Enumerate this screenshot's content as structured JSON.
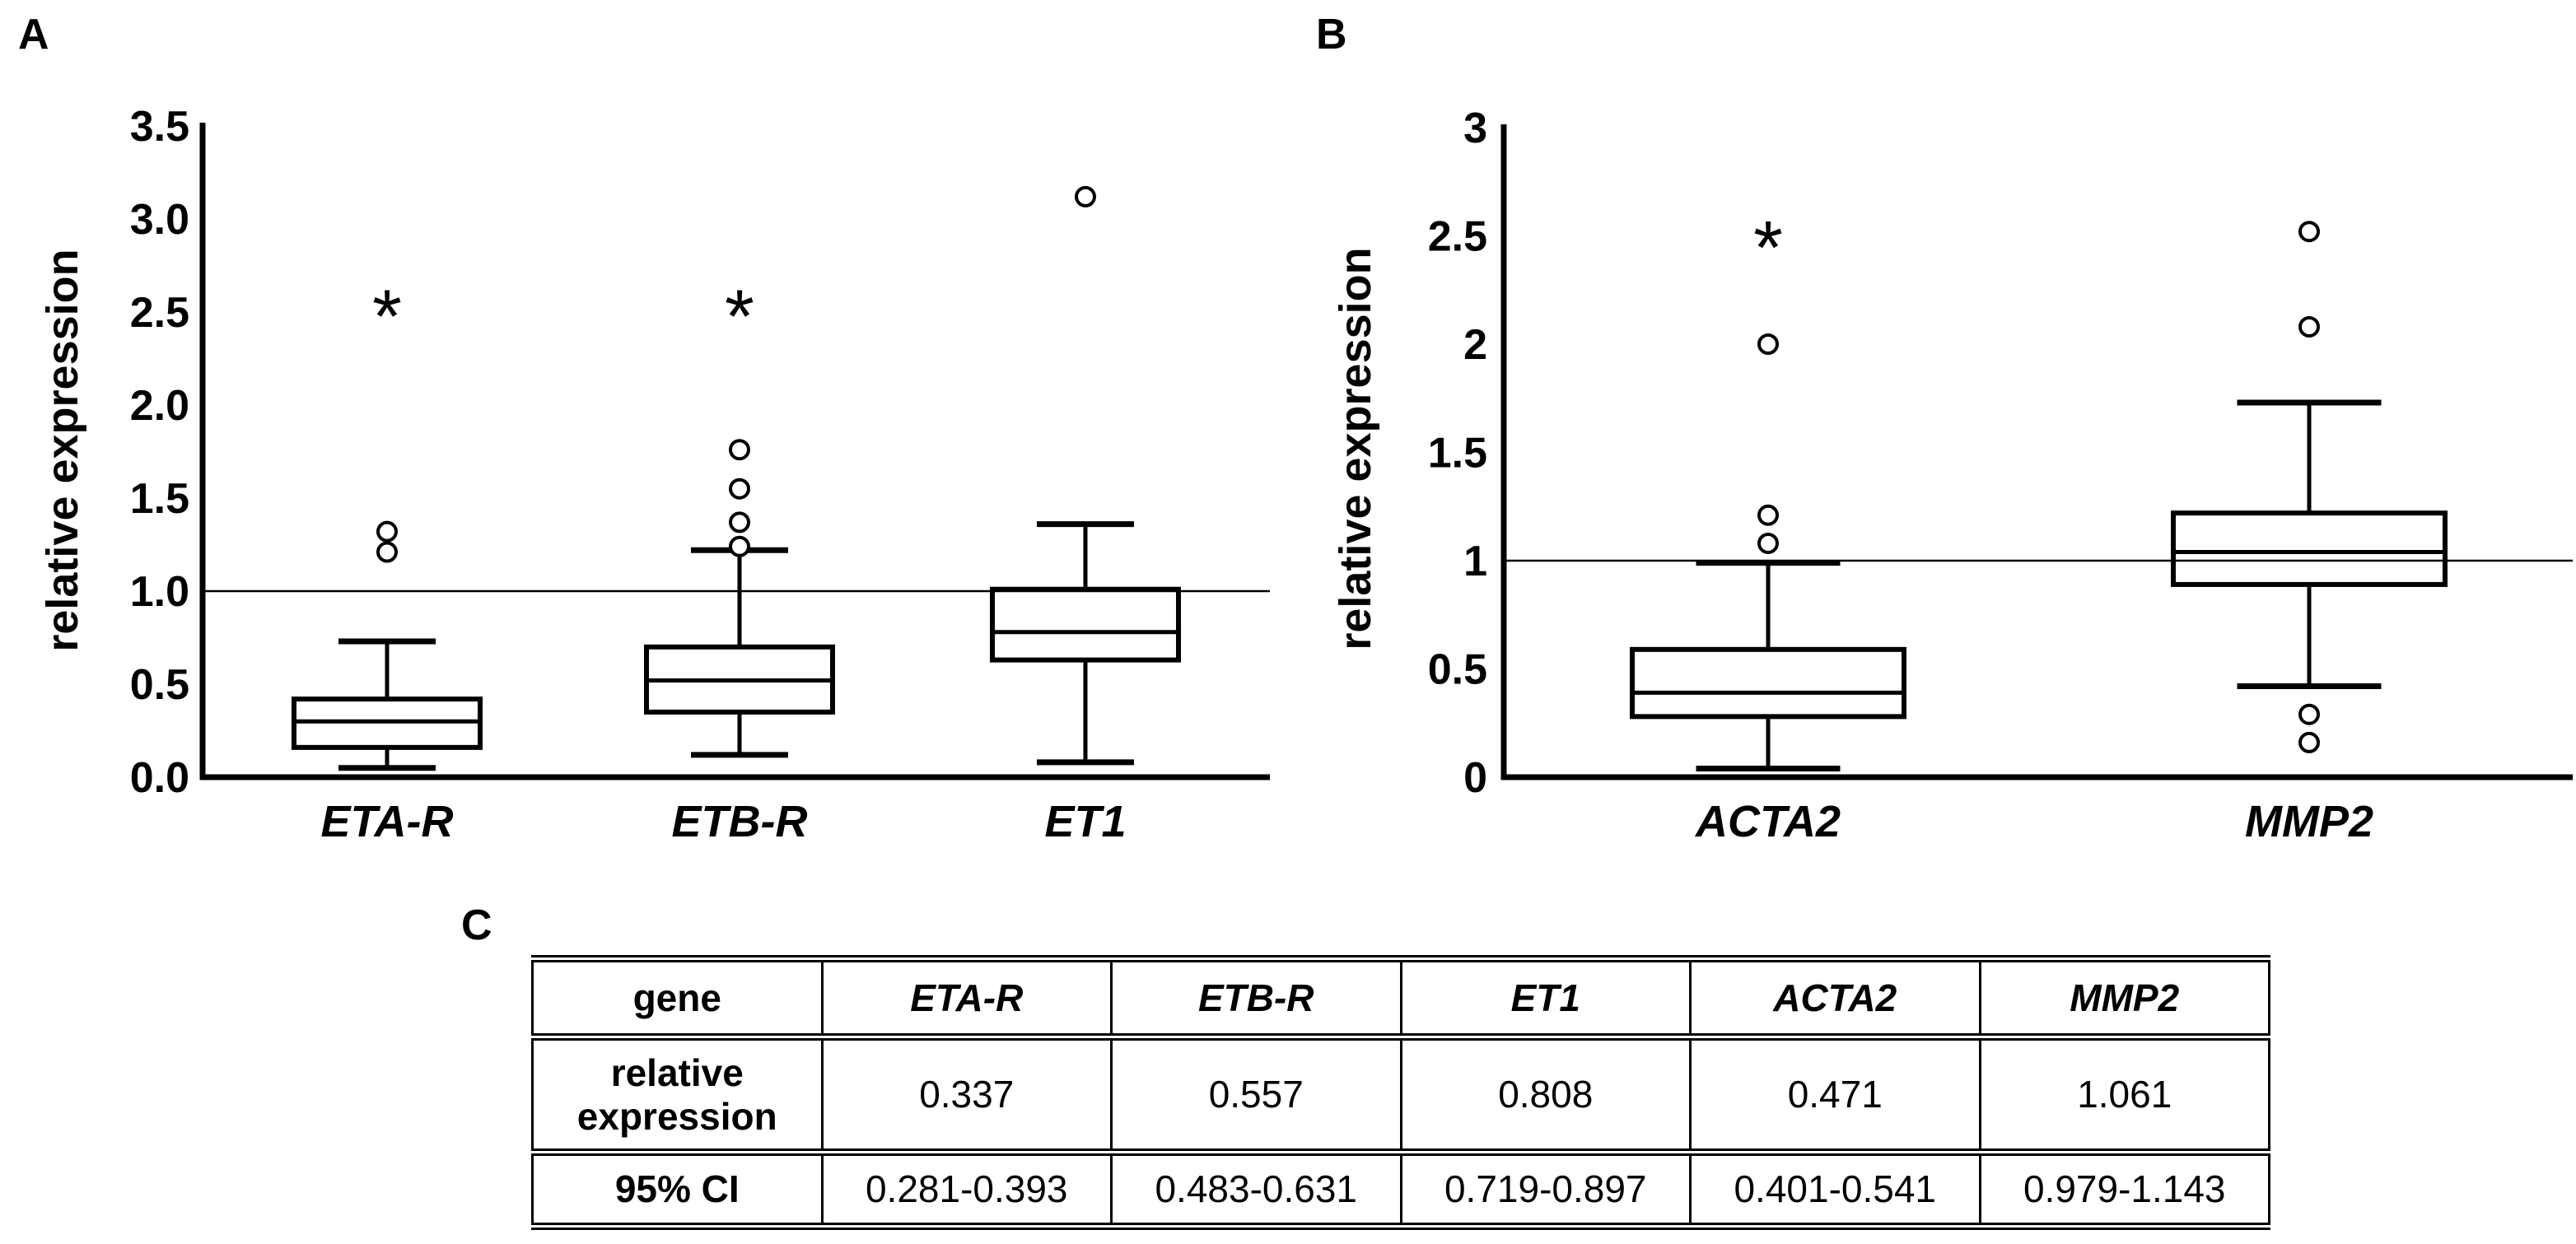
{
  "colors": {
    "ink": "#000000",
    "background": "#ffffff"
  },
  "panels": {
    "a": {
      "letter": "A"
    },
    "b": {
      "letter": "B"
    },
    "c": {
      "letter": "C"
    }
  },
  "chart_data": [
    {
      "id": "A",
      "type": "boxplot",
      "title": "",
      "ylabel": "relative expression",
      "ylim": [
        0,
        3.5
      ],
      "yticks": [
        {
          "value": 3.5,
          "label": "3.5"
        },
        {
          "value": 3.0,
          "label": "3.0"
        },
        {
          "value": 2.5,
          "label": "2.5"
        },
        {
          "value": 2.0,
          "label": "2.0"
        },
        {
          "value": 1.5,
          "label": "1.5"
        },
        {
          "value": 1.0,
          "label": "1.0"
        },
        {
          "value": 0.5,
          "label": "0.5"
        },
        {
          "value": 0.0,
          "label": "0.0"
        }
      ],
      "grid": false,
      "reference_line": 1.0,
      "categories": [
        "ETA-R",
        "ETB-R",
        "ET1"
      ],
      "series": [
        {
          "name": "ETA-R",
          "whisker_low": 0.05,
          "q1": 0.16,
          "median": 0.3,
          "q3": 0.42,
          "whisker_high": 0.73,
          "outliers": [
            1.21,
            1.32
          ],
          "extremes": [
            2.54
          ]
        },
        {
          "name": "ETB-R",
          "whisker_low": 0.12,
          "q1": 0.35,
          "median": 0.52,
          "q3": 0.7,
          "whisker_high": 1.22,
          "outliers": [
            1.24,
            1.37,
            1.55,
            1.76
          ],
          "extremes": [
            2.54
          ]
        },
        {
          "name": "ET1",
          "whisker_low": 0.08,
          "q1": 0.63,
          "median": 0.78,
          "q3": 1.01,
          "whisker_high": 1.36,
          "outliers": [
            3.12
          ],
          "extremes": []
        }
      ]
    },
    {
      "id": "B",
      "type": "boxplot",
      "title": "",
      "ylabel": "relative expression",
      "ylim": [
        0,
        3
      ],
      "yticks": [
        {
          "value": 3.0,
          "label": "3"
        },
        {
          "value": 2.5,
          "label": "2.5"
        },
        {
          "value": 2.0,
          "label": "2"
        },
        {
          "value": 1.5,
          "label": "1.5"
        },
        {
          "value": 1.0,
          "label": "1"
        },
        {
          "value": 0.5,
          "label": "0.5"
        },
        {
          "value": 0.0,
          "label": "0"
        }
      ],
      "grid": false,
      "reference_line": 1.0,
      "categories": [
        "ACTA2",
        "MMP2"
      ],
      "series": [
        {
          "name": "ACTA2",
          "whisker_low": 0.04,
          "q1": 0.28,
          "median": 0.39,
          "q3": 0.59,
          "whisker_high": 0.99,
          "outliers": [
            1.08,
            1.21,
            2.0
          ],
          "extremes": [
            2.5
          ]
        },
        {
          "name": "MMP2",
          "whisker_low": 0.42,
          "q1": 0.89,
          "median": 1.04,
          "q3": 1.22,
          "whisker_high": 1.73,
          "outliers": [
            0.16,
            0.29,
            2.08,
            2.52
          ],
          "extremes": []
        }
      ]
    },
    {
      "id": "C",
      "type": "table",
      "header": [
        "gene",
        "ETA-R",
        "ETB-R",
        "ET1",
        "ACTA2",
        "MMP2"
      ],
      "rows": [
        {
          "label": "relative expression",
          "values": [
            "0.337",
            "0.557",
            "0.808",
            "0.471",
            "1.061"
          ]
        },
        {
          "label": "95% CI",
          "values": [
            "0.281-0.393",
            "0.483-0.631",
            "0.719-0.897",
            "0.401-0.541",
            "0.979-1.143"
          ]
        }
      ]
    }
  ]
}
